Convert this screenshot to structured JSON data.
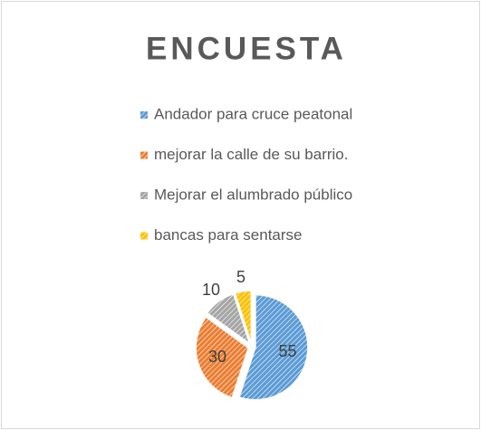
{
  "chart_data": {
    "type": "pie",
    "title": "ENCUESTA",
    "categories": [
      "Andador para cruce peatonal",
      "mejorar la calle de su barrio.",
      "Mejorar el alumbrado público",
      "bancas para sentarse"
    ],
    "values": [
      55,
      30,
      10,
      5
    ],
    "colors": [
      "#5b9bd5",
      "#ed7d31",
      "#a5a5a5",
      "#ffc000"
    ],
    "legend": "top"
  }
}
